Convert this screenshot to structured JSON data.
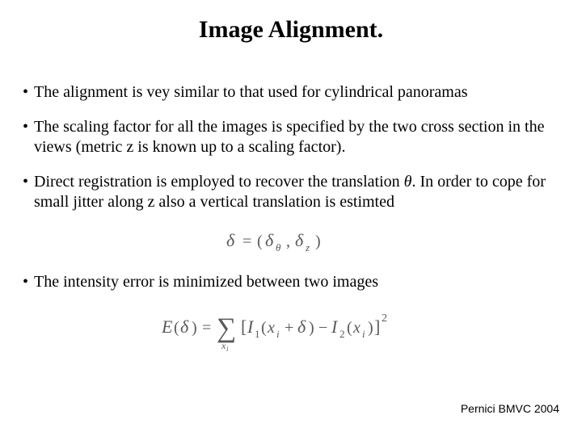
{
  "title": "Image Alignment.",
  "bullets": {
    "b1": "The alignment is vey similar to that used for cylindrical panoramas",
    "b2": "The scaling factor for all the images is specified by the two cross section in the views (metric z is known up to a scaling factor).",
    "b3a": "Direct registration is employed to recover the translation ",
    "b3b": ". In order to cope for small jitter along z also a vertical translation is estimted",
    "b4": "The intensity error is minimized between two images"
  },
  "footer": "Pernici BMVC 2004",
  "style": {
    "background_color": "#ffffff",
    "text_color": "#000000",
    "title_fontsize": 30,
    "body_fontsize": 20,
    "footer_fontsize": 14,
    "formula_color": "#5a5a5a"
  }
}
